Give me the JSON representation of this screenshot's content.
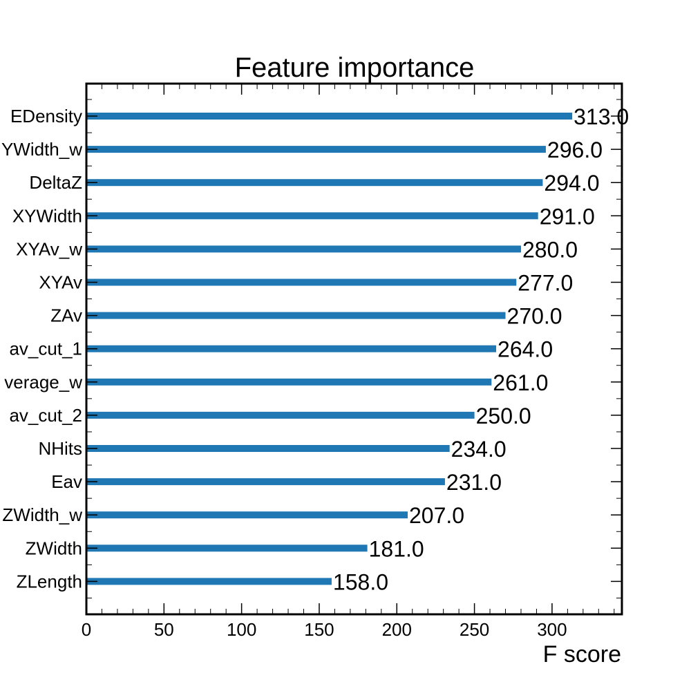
{
  "chart_data": {
    "type": "bar",
    "orientation": "horizontal",
    "title": "Feature importance",
    "xlabel": "F score",
    "ylabel": "",
    "xlim": [
      0,
      345
    ],
    "x_ticks": [
      "0",
      "50",
      "100",
      "150",
      "200",
      "250",
      "300"
    ],
    "grid": false,
    "bar_color": "#1f77b4",
    "categories": [
      "EDensity",
      "YWidth_w",
      "DeltaZ",
      "XYWidth",
      "XYAv_w",
      "XYAv",
      "ZAv",
      "av_cut_1",
      "verage_w",
      "av_cut_2",
      "NHits",
      "Eav",
      "ZWidth_w",
      "ZWidth",
      "ZLength"
    ],
    "values": [
      313,
      296,
      294,
      291,
      280,
      277,
      270,
      264,
      261,
      250,
      234,
      231,
      207,
      181,
      158
    ],
    "value_labels": [
      "313.0",
      "296.0",
      "294.0",
      "291.0",
      "280.0",
      "277.0",
      "270.0",
      "264.0",
      "261.0",
      "250.0",
      "234.0",
      "231.0",
      "207.0",
      "181.0",
      "158.0"
    ]
  }
}
